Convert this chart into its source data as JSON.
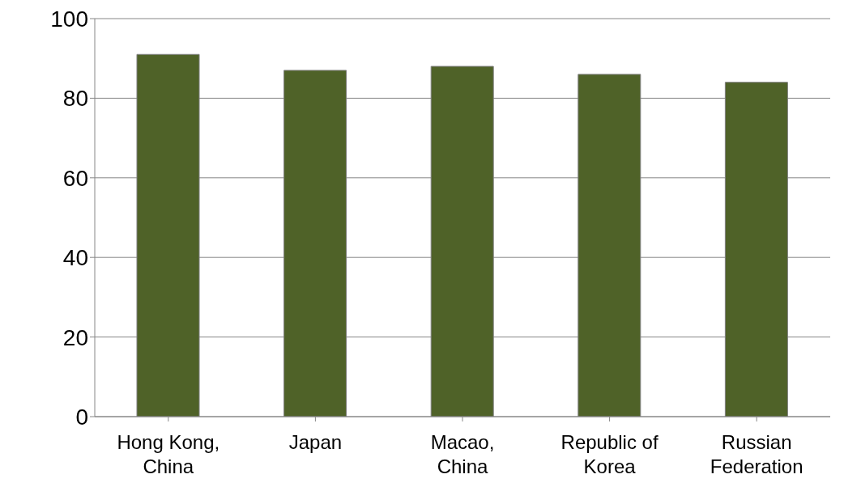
{
  "chart_data": {
    "type": "bar",
    "categories": [
      "Hong Kong, China",
      "Japan",
      "Macao, China",
      "Republic of Korea",
      "Russian Federation"
    ],
    "values": [
      91,
      87,
      88,
      86,
      84
    ],
    "color": "#4f6228",
    "ylim": [
      0,
      100
    ],
    "yticks": [
      0,
      20,
      40,
      60,
      80,
      100
    ],
    "grid": "y"
  }
}
